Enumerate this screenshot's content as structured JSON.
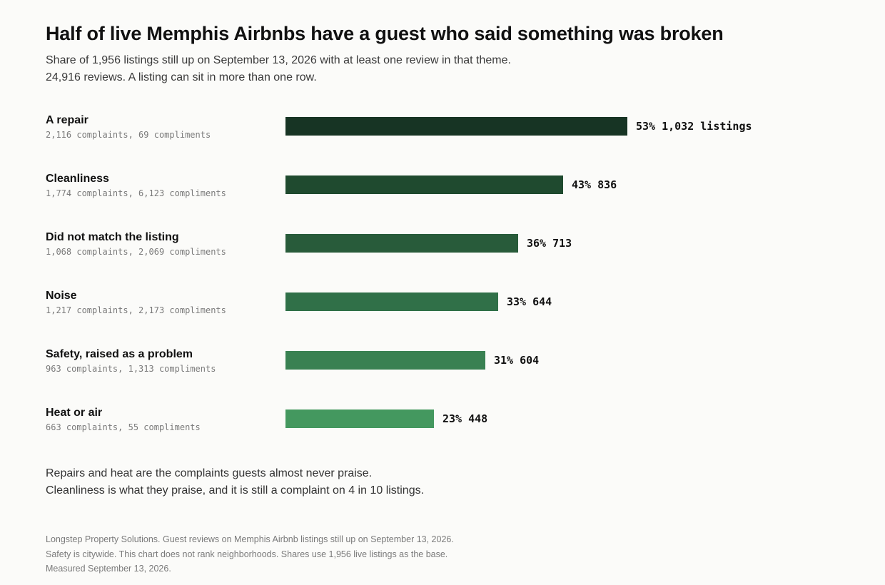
{
  "header": {
    "title": "Half of live Memphis Airbnbs have a guest who said something was broken",
    "subtitle_lines": [
      "Share of 1,956 listings still up on September 13, 2026 with at least one review in that theme.",
      "24,916 reviews. A listing can sit in more than one row."
    ]
  },
  "chart_data": {
    "type": "bar",
    "orientation": "horizontal",
    "title": "Half of live Memphis Airbnbs have a guest who said something was broken",
    "value_unit": "percent of listings",
    "xlim": [
      0,
      100
    ],
    "grid": false,
    "legend": "none",
    "categories": [
      "A repair",
      "Cleanliness",
      "Did not match the listing",
      "Noise",
      "Safety, raised as a problem",
      "Heat or air"
    ],
    "details": [
      "2,116 complaints, 69 compliments",
      "1,774 complaints, 6,123 compliments",
      "1,068 complaints, 2,069 compliments",
      "1,217 complaints, 2,173 compliments",
      "963 complaints, 1,313 compliments",
      "663 complaints, 55 compliments"
    ],
    "values": [
      53,
      43,
      36,
      33,
      31,
      23
    ],
    "value_labels": [
      "53%",
      "43%",
      "36%",
      "33%",
      "31%",
      "23%"
    ],
    "listing_counts": [
      1032,
      836,
      713,
      644,
      604,
      448
    ],
    "count_labels": [
      "1,032 listings",
      "836",
      "713",
      "644",
      "604",
      "448"
    ],
    "colors": [
      "#173424",
      "#1f4a2f",
      "#285b3a",
      "#307048",
      "#398152",
      "#44985f"
    ]
  },
  "takeaway_lines": [
    "Repairs and heat are the complaints guests almost never praise.",
    "Cleanliness is what they praise, and it is still a complaint on 4 in 10 listings."
  ],
  "footnote_lines": [
    "Longstep Property Solutions. Guest reviews on Memphis Airbnb listings still up on September 13, 2026.",
    "Safety is citywide. This chart does not rank neighborhoods. Shares use 1,956 live listings as the base.",
    "Measured September 13, 2026."
  ]
}
